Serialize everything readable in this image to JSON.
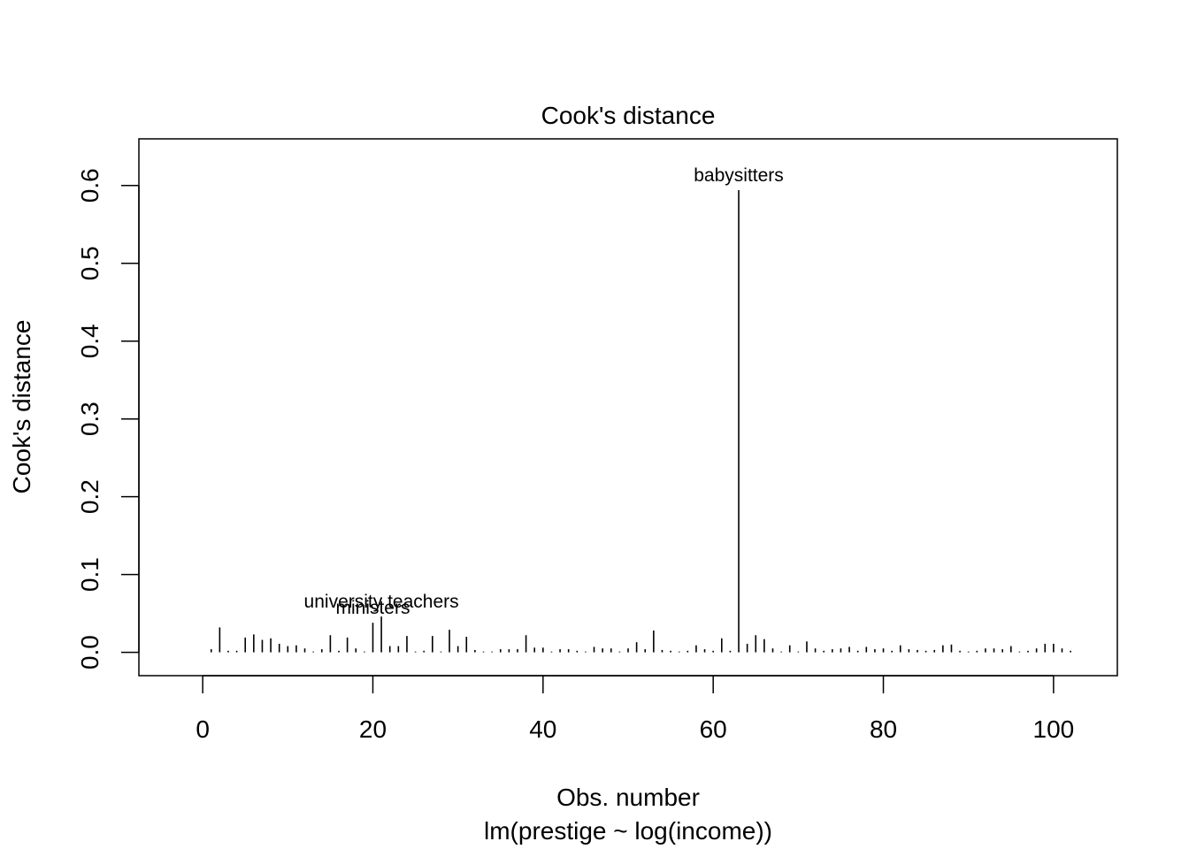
{
  "chart_data": {
    "type": "bar",
    "title": "Cook's distance",
    "xlabel": "Obs. number",
    "subtitle": "lm(prestige ~ log(income))",
    "ylabel": "Cook's distance",
    "xlim": [
      -7.5,
      107.5
    ],
    "ylim": [
      -0.03,
      0.66
    ],
    "xticks": [
      0,
      20,
      40,
      60,
      80,
      100
    ],
    "yticks": [
      0.0,
      0.1,
      0.2,
      0.3,
      0.4,
      0.5,
      0.6
    ],
    "xtick_labels": [
      "0",
      "20",
      "40",
      "60",
      "80",
      "100"
    ],
    "ytick_labels": [
      "0.0",
      "0.1",
      "0.2",
      "0.3",
      "0.4",
      "0.5",
      "0.6"
    ],
    "grid": false,
    "legend": "none",
    "x": [
      1,
      2,
      3,
      4,
      5,
      6,
      7,
      8,
      9,
      10,
      11,
      12,
      13,
      14,
      15,
      16,
      17,
      18,
      19,
      20,
      21,
      22,
      23,
      24,
      25,
      26,
      27,
      28,
      29,
      30,
      31,
      32,
      33,
      34,
      35,
      36,
      37,
      38,
      39,
      40,
      41,
      42,
      43,
      44,
      45,
      46,
      47,
      48,
      49,
      50,
      51,
      52,
      53,
      54,
      55,
      56,
      57,
      58,
      59,
      60,
      61,
      62,
      63,
      64,
      65,
      66,
      67,
      68,
      69,
      70,
      71,
      72,
      73,
      74,
      75,
      76,
      77,
      78,
      79,
      80,
      81,
      82,
      83,
      84,
      85,
      86,
      87,
      88,
      89,
      90,
      91,
      92,
      93,
      94,
      95,
      96,
      97,
      98,
      99,
      100,
      101,
      102
    ],
    "values": [
      0.004,
      0.032,
      0.002,
      0.002,
      0.019,
      0.023,
      0.016,
      0.018,
      0.011,
      0.008,
      0.009,
      0.005,
      0.001,
      0.004,
      0.022,
      0.002,
      0.019,
      0.005,
      0.001,
      0.038,
      0.046,
      0.008,
      0.008,
      0.021,
      0.001,
      0.002,
      0.021,
      0.001,
      0.029,
      0.008,
      0.02,
      0.003,
      0.001,
      0.001,
      0.004,
      0.004,
      0.004,
      0.022,
      0.006,
      0.006,
      0.001,
      0.004,
      0.004,
      0.002,
      0.001,
      0.007,
      0.005,
      0.005,
      0.001,
      0.005,
      0.013,
      0.004,
      0.028,
      0.003,
      0.002,
      0.001,
      0.002,
      0.009,
      0.004,
      0.002,
      0.018,
      0.002,
      0.594,
      0.011,
      0.022,
      0.017,
      0.005,
      0.001,
      0.009,
      0.001,
      0.014,
      0.005,
      0.002,
      0.004,
      0.005,
      0.007,
      0.002,
      0.007,
      0.004,
      0.005,
      0.002,
      0.009,
      0.004,
      0.003,
      0.002,
      0.003,
      0.009,
      0.01,
      0.002,
      0.001,
      0.002,
      0.005,
      0.005,
      0.004,
      0.008,
      0.001,
      0.002,
      0.005,
      0.011,
      0.011,
      0.005,
      0.002
    ],
    "annotations": [
      {
        "label": "babysitters",
        "x": 63,
        "y": 0.594
      },
      {
        "label": "ministers",
        "x": 20,
        "y": 0.038
      },
      {
        "label": "university teachers",
        "x": 21,
        "y": 0.046
      }
    ]
  }
}
